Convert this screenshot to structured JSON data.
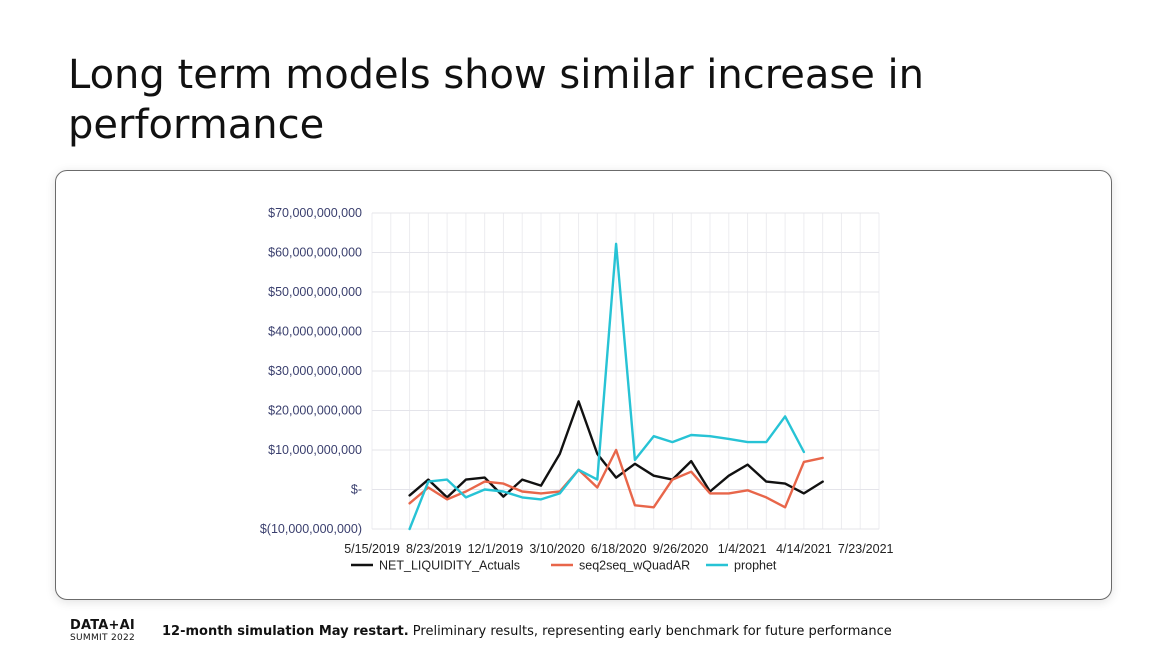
{
  "slide": {
    "title": "Long term models show similar increase in performance",
    "footer": {
      "logo_line1": "DATA+AI",
      "logo_line2": "SUMMIT 2022",
      "note_bold": "12-month simulation May restart.",
      "note_rest": " Preliminary results, representing early benchmark for future performance"
    }
  },
  "chart_data": {
    "type": "line",
    "title": "",
    "xlabel": "",
    "ylabel": "",
    "ylim": [
      -10000000000,
      70000000000
    ],
    "y_ticks": [
      {
        "value": 70000000000,
        "label": "$70,000,000,000"
      },
      {
        "value": 60000000000,
        "label": "$60,000,000,000"
      },
      {
        "value": 50000000000,
        "label": "$50,000,000,000"
      },
      {
        "value": 40000000000,
        "label": "$40,000,000,000"
      },
      {
        "value": 30000000000,
        "label": "$30,000,000,000"
      },
      {
        "value": 20000000000,
        "label": "$20,000,000,000"
      },
      {
        "value": 10000000000,
        "label": "$10,000,000,000"
      },
      {
        "value": 0,
        "label": "$-"
      },
      {
        "value": -10000000000,
        "label": "$(10,000,000,000)"
      }
    ],
    "x_tick_labels": [
      "5/15/2019",
      "8/23/2019",
      "12/1/2019",
      "3/10/2020",
      "6/18/2020",
      "9/26/2020",
      "1/4/2021",
      "4/14/2021",
      "7/23/2021"
    ],
    "x_tick_index": [
      0,
      3.29,
      6.57,
      9.86,
      13.14,
      16.43,
      19.71,
      23,
      26.29
    ],
    "x_count": 28,
    "legend_position": "bottom",
    "series": [
      {
        "name": "NET_LIQUIDITY_Actuals",
        "color": "#111111",
        "start_index": 2,
        "values": [
          -1500000000.0,
          2500000000.0,
          -2000000000.0,
          2500000000.0,
          3000000000.0,
          -1800000000.0,
          2500000000.0,
          1000000000.0,
          9000000000.0,
          22300000000.0,
          9000000000.0,
          3000000000.0,
          6500000000.0,
          3500000000.0,
          2500000000.0,
          7200000000.0,
          -500000000.0,
          3500000000.0,
          6300000000.0,
          2000000000.0,
          1500000000.0,
          -1000000000.0,
          2000000000.0
        ]
      },
      {
        "name": "seq2seq_wQuadAR",
        "color": "#e8664a",
        "start_index": 2,
        "values": [
          -3500000000.0,
          500000000.0,
          -2500000000.0,
          -500000000.0,
          2000000000.0,
          1500000000.0,
          -500000000.0,
          -1000000000.0,
          -500000000.0,
          5000000000.0,
          500000000.0,
          10000000000.0,
          -4000000000.0,
          -4500000000.0,
          2500000000.0,
          4500000000.0,
          -1000000000.0,
          -1000000000.0,
          -200000000.0,
          -2000000000.0,
          -4500000000.0,
          7000000000.0,
          8000000000.0
        ]
      },
      {
        "name": "prophet",
        "color": "#27c3d5",
        "start_index": 2,
        "values": [
          -10000000000.0,
          2000000000.0,
          2500000000.0,
          -2000000000.0,
          0,
          -500000000.0,
          -2000000000.0,
          -2500000000.0,
          -1000000000.0,
          5000000000.0,
          2500000000.0,
          62200000000.0,
          7500000000.0,
          13500000000.0,
          12000000000.0,
          13800000000.0,
          13500000000.0,
          12800000000.0,
          12000000000.0,
          12000000000.0,
          18500000000.0,
          9500000000.0
        ]
      }
    ]
  }
}
